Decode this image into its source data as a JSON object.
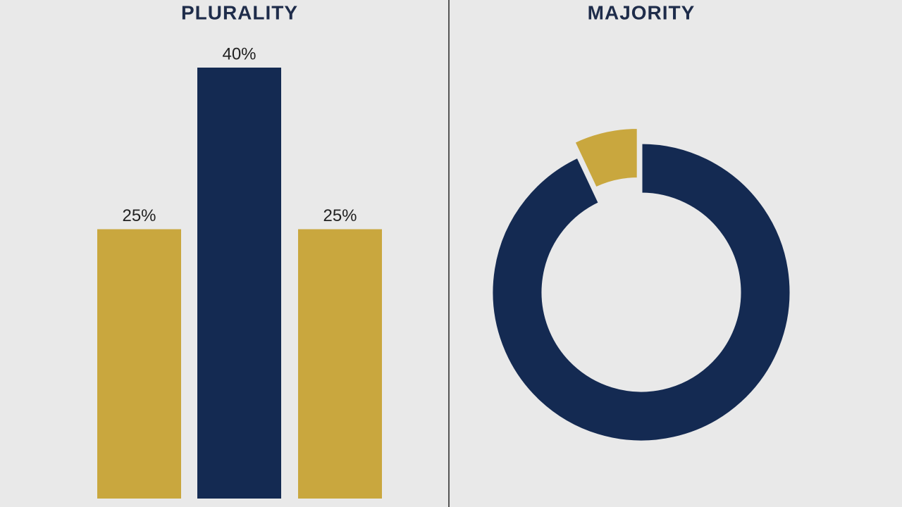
{
  "chart_data": [
    {
      "type": "bar",
      "title": "PLURALITY",
      "values": [
        25,
        40,
        25
      ],
      "value_labels": [
        "25%",
        "40%",
        "25%"
      ],
      "colors": [
        "#c9a73e",
        "#142a52",
        "#c9a73e"
      ]
    },
    {
      "type": "pie",
      "title": "MAJORITY",
      "values": [
        93,
        7
      ],
      "colors": [
        "#142a52",
        "#c9a73e"
      ]
    }
  ]
}
